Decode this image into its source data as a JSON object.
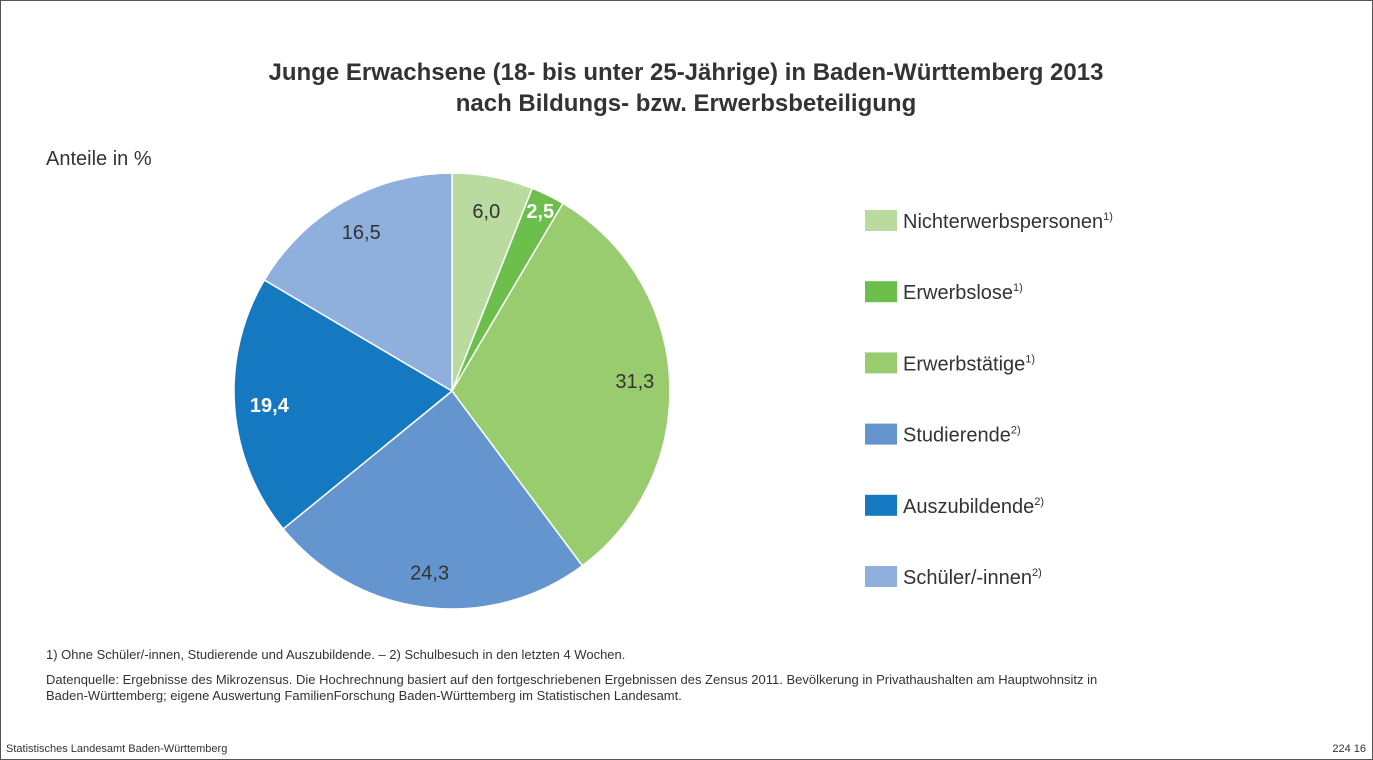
{
  "chart_data": {
    "type": "pie",
    "title": [
      "Junge Erwachsene (18- bis unter 25-Jährige) in  Baden-Württemberg 2013",
      "nach Bildungs- bzw. Erwerbsbeteiligung"
    ],
    "subtitle": "Anteile in %",
    "categories": [
      "Nichterwerbspersonen",
      "Erwerbslose",
      "Erwerbstätige",
      "Studierende",
      "Auszubildende",
      "Schüler/-innen"
    ],
    "category_notes": [
      "1)",
      "1)",
      "1)",
      "2)",
      "2)",
      "2)"
    ],
    "values": [
      6.0,
      2.5,
      31.3,
      24.3,
      19.4,
      16.5
    ],
    "value_labels": [
      "6,0",
      "2,5",
      "31,3",
      "24,3",
      "19,4",
      "16,5"
    ],
    "colors": [
      "#b9dba0",
      "#6cbf4a",
      "#99cc6e",
      "#6495cf",
      "#1479c0",
      "#8fb0dc"
    ],
    "value_label_colors": [
      "#333333",
      "#ffffff",
      "#333333",
      "#333333",
      "#ffffff",
      "#333333"
    ],
    "footnotes": [
      "1) Ohne Schüler/-innen, Studierende und Auszubildende. – 2) Schulbesuch in den letzten 4 Wochen.",
      "Datenquelle: Ergebnisse des Mikrozensus. Die Hochrechnung basiert auf den fortgeschriebenen Ergebnissen des Zensus 2011. Bevölkerung in Privathaushalten am Hauptwohnsitz in",
      "Baden-Württemberg; eigene Auswertung FamilienForschung Baden-Württemberg im Statistischen Landesamt."
    ],
    "footer_left": "Statistisches Landesamt Baden-Württemberg",
    "footer_right": "224 16"
  }
}
